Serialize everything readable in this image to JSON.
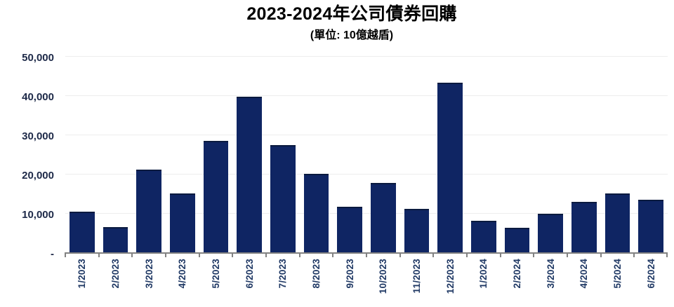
{
  "header": {
    "title": "2023-2024年公司債券回購",
    "subtitle": "(單位: 10億越盾)"
  },
  "colors": {
    "background": "#ffffff",
    "bar": "#0f2563",
    "bar_edge": "#0a1a3f",
    "gridline": "#ededed",
    "axis_line": "#828282",
    "y_tick_label": "#1d2948",
    "x_tick_label": "#1f3864",
    "title": "#000000"
  },
  "chart_data": {
    "type": "bar",
    "title": "2023-2024年公司債券回購",
    "subtitle": "(單位: 10億越盾)",
    "categories": [
      "1/2023",
      "2/2023",
      "3/2023",
      "4/2023",
      "5/2023",
      "6/2023",
      "7/2023",
      "8/2023",
      "9/2023",
      "10/2023",
      "11/2023",
      "12/2023",
      "1/2024",
      "2/2024",
      "3/2024",
      "4/2024",
      "5/2024",
      "6/2024"
    ],
    "values": [
      10400,
      6500,
      21000,
      15000,
      28400,
      39700,
      27400,
      20000,
      11600,
      17600,
      11100,
      43200,
      8100,
      6300,
      9800,
      12900,
      15000,
      13400
    ],
    "xlabel": "",
    "ylabel": "",
    "ylim": [
      0,
      50000
    ],
    "yticks": [
      0,
      10000,
      20000,
      30000,
      40000,
      50000
    ],
    "ytick_labels": [
      "-",
      "10,000",
      "20,000",
      "30,000",
      "40,000",
      "50,000"
    ],
    "grid": "horizontal",
    "legend": "none",
    "x_labels_rotation_degrees": 90
  }
}
